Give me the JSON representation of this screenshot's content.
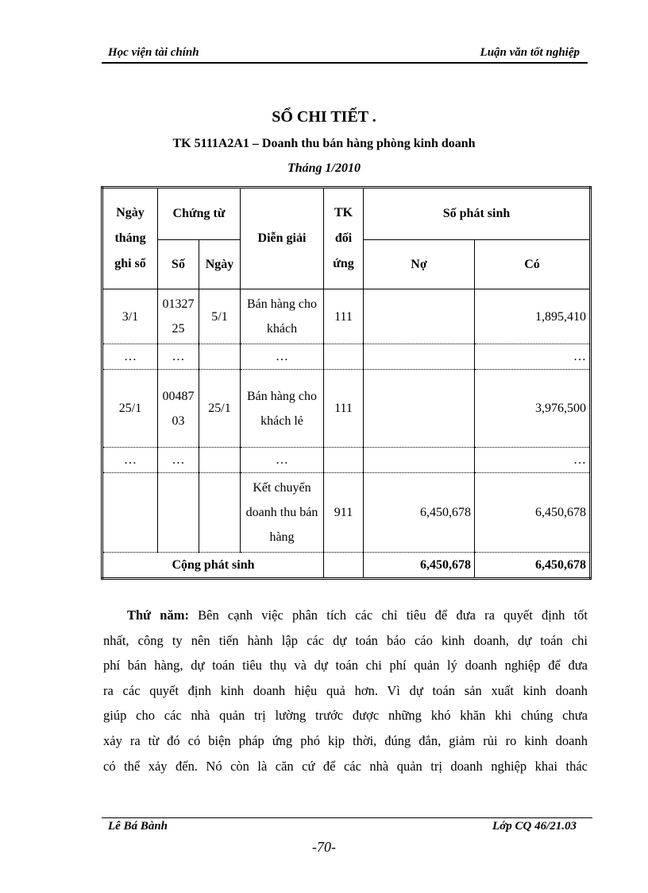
{
  "header": {
    "left": "Học viện tài chính",
    "right": "Luận văn tốt nghiệp"
  },
  "title": "SỔ CHI TIẾT .",
  "subtitle": "TK 5111A2A1 – Doanh thu bán hàng phòng kinh doanh",
  "period": "Tháng 1/2010",
  "table": {
    "headers": {
      "date": "Ngày tháng ghi sổ",
      "voucher": "Chứng từ",
      "voucher_no": "Số",
      "voucher_date": "Ngày",
      "description": "Diễn giải",
      "account": "TK đối ứng",
      "amount": "Số phát sinh",
      "debit": "Nợ",
      "credit": "Có"
    },
    "rows": [
      {
        "date": "3/1",
        "no": "0132725",
        "vdate": "5/1",
        "desc": "Bán hàng cho khách",
        "acc": "111",
        "debit": "",
        "credit": "1,895,410"
      },
      {
        "date": "…",
        "no": "…",
        "vdate": "",
        "desc": "…",
        "acc": "",
        "debit": "",
        "credit": "…"
      },
      {
        "date": "25/1",
        "no": "0048703",
        "vdate": "25/1",
        "desc": "Bán hàng cho khách lẻ",
        "acc": "111",
        "debit": "",
        "credit": "3,976,500"
      },
      {
        "date": "…",
        "no": "…",
        "vdate": "",
        "desc": "…",
        "acc": "",
        "debit": "",
        "credit": "…"
      },
      {
        "date": "",
        "no": "",
        "vdate": "",
        "desc": "Kết chuyển doanh thu bán hàng",
        "acc": "911",
        "debit": "6,450,678",
        "credit": "6,450,678"
      }
    ],
    "total": {
      "label": "Cộng phát sinh",
      "debit": "6,450,678",
      "credit": "6,450,678"
    }
  },
  "paragraph": {
    "lead": "Thứ năm:",
    "lines": [
      "Bên cạnh việc phân tích các chỉ tiêu để đưa ra quyết định tốt",
      "nhất, công ty nên tiến hành lập các dự toán báo cáo kinh doanh, dự toán chi",
      "phí bán hàng, dự toán tiêu thụ và dự toán chi phí quản lý doanh nghiệp để đưa",
      "ra các quyết định kinh doanh hiệu quả hơn. Vì dự toán sản xuất kinh doanh",
      "giúp cho các nhà quản trị lường trước được những khó khăn khi chúng chưa",
      "xảy ra từ đó có biện pháp ứng phó kịp thời, đúng đắn, giảm rủi ro kinh doanh",
      "có thể xảy đến. Nó còn là căn cứ để các nhà quản trị doanh nghiệp khai thác"
    ]
  },
  "footer": {
    "left": "Lê Bá Bành",
    "right": "Lớp CQ 46/21.03",
    "page": "-70-"
  }
}
